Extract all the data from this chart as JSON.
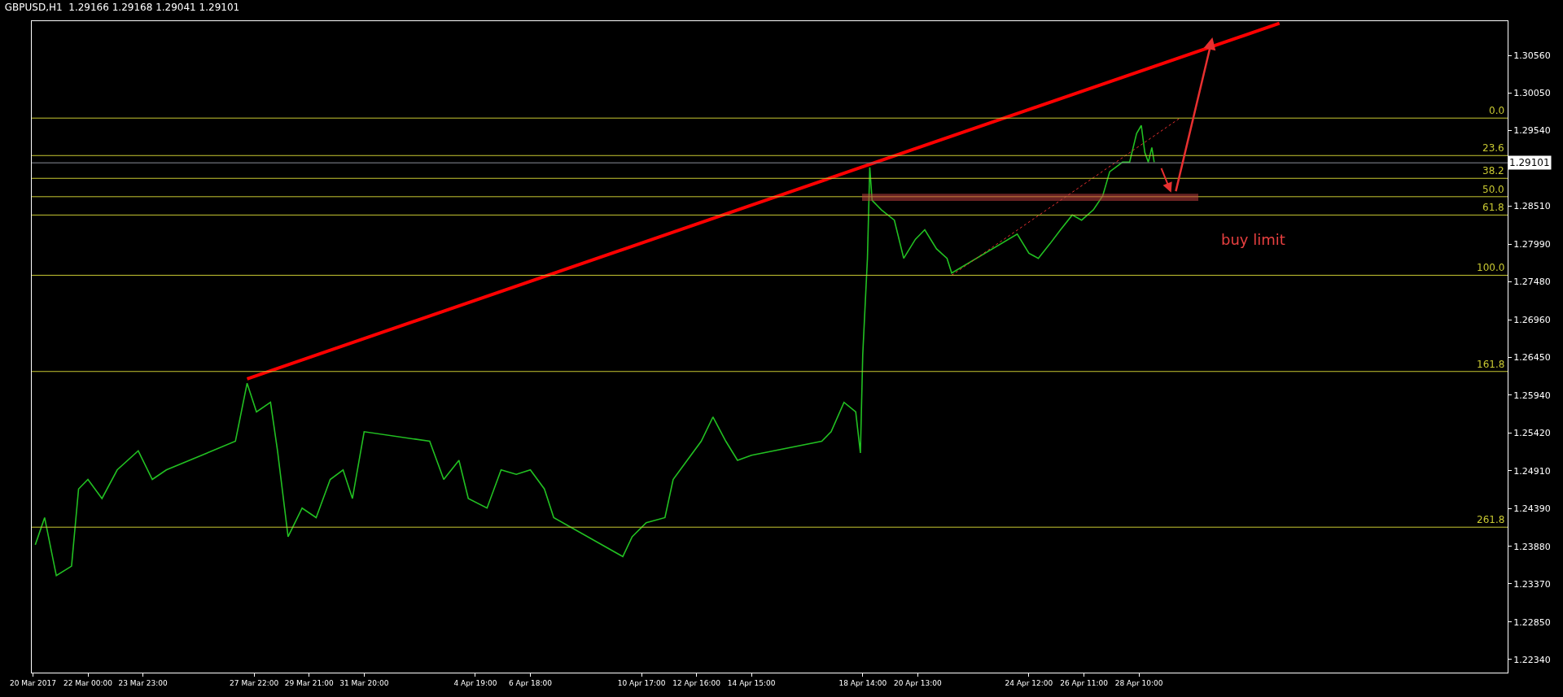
{
  "chart_data": {
    "type": "line",
    "title": "GBPUSD,H1  1.29166 1.29168 1.29041 1.29101",
    "x": [
      "2017-03-20T03:00",
      "2017-03-20T11:00",
      "2017-03-20T21:00",
      "2017-03-21T10:00",
      "2017-03-21T16:00",
      "2017-03-22T00:00",
      "2017-03-22T12:00",
      "2017-03-23T01:00",
      "2017-03-23T19:00",
      "2017-03-24T07:00",
      "2017-03-24T19:00",
      "2017-03-27T06:00",
      "2017-03-27T16:00",
      "2017-03-28T00:00",
      "2017-03-28T12:00",
      "2017-03-28T18:00",
      "2017-03-29T03:00",
      "2017-03-29T15:00",
      "2017-03-30T03:00",
      "2017-03-30T15:00",
      "2017-03-31T02:00",
      "2017-03-31T10:00",
      "2017-03-31T20:00",
      "2017-04-03T04:00",
      "2017-04-03T16:00",
      "2017-04-04T05:00",
      "2017-04-04T13:00",
      "2017-04-05T05:00",
      "2017-04-05T17:00",
      "2017-04-06T06:00",
      "2017-04-06T18:00",
      "2017-04-07T06:00",
      "2017-04-07T14:00",
      "2017-04-10T01:00",
      "2017-04-10T09:00",
      "2017-04-10T21:00",
      "2017-04-11T13:00",
      "2017-04-11T20:00",
      "2017-04-12T08:00",
      "2017-04-12T20:00",
      "2017-04-13T06:00",
      "2017-04-13T17:00",
      "2017-04-14T03:00",
      "2017-04-14T15:00",
      "2017-04-17T03:00",
      "2017-04-17T11:00",
      "2017-04-17T22:00",
      "2017-04-18T08:00",
      "2017-04-18T12:00",
      "2017-04-18T14:00",
      "2017-04-18T18:00",
      "2017-04-18T20:00",
      "2017-04-18T22:00",
      "2017-04-19T06:00",
      "2017-04-19T17:00",
      "2017-04-20T01:00",
      "2017-04-20T11:00",
      "2017-04-20T19:00",
      "2017-04-21T05:00",
      "2017-04-21T14:00",
      "2017-04-21T18:00",
      "2017-04-24T02:00",
      "2017-04-24T12:00",
      "2017-04-24T20:00",
      "2017-04-25T06:00",
      "2017-04-25T15:00",
      "2017-04-26T01:00",
      "2017-04-26T09:00",
      "2017-04-26T19:00",
      "2017-04-27T03:00",
      "2017-04-27T09:00",
      "2017-04-27T20:00",
      "2017-04-28T02:00",
      "2017-04-28T08:00",
      "2017-04-28T12:00",
      "2017-04-28T15:00",
      "2017-04-28T18:00",
      "2017-04-28T21:00",
      "2017-04-28T23:00"
    ],
    "series": [
      {
        "color": "#22c022",
        "values": [
          1.239,
          1.2427,
          1.2348,
          1.2361,
          1.2466,
          1.2479,
          1.2453,
          1.2492,
          1.2518,
          1.2479,
          1.2492,
          1.2531,
          1.261,
          1.2571,
          1.2584,
          1.2518,
          1.2401,
          1.244,
          1.2427,
          1.2479,
          1.2492,
          1.2453,
          1.2544,
          1.2531,
          1.2479,
          1.2505,
          1.2453,
          1.244,
          1.2492,
          1.2486,
          1.2492,
          1.2466,
          1.2427,
          1.2374,
          1.2401,
          1.242,
          1.2427,
          1.2479,
          1.2505,
          1.2531,
          1.2564,
          1.2531,
          1.2505,
          1.2512,
          1.2531,
          1.2544,
          1.2584,
          1.2571,
          1.2515,
          1.2649,
          1.278,
          1.2904,
          1.2859,
          1.2846,
          1.2832,
          1.278,
          1.2806,
          1.2819,
          1.2793,
          1.278,
          1.276,
          1.2813,
          1.2787,
          1.278,
          1.28,
          1.2819,
          1.2839,
          1.2832,
          1.2846,
          1.2865,
          1.2898,
          1.2911,
          1.2911,
          1.295,
          1.2961,
          1.2924,
          1.2911,
          1.2931,
          1.2911
        ]
      },
      {
        "type": "line",
        "color": "#ff0000",
        "x": [
          "2017-03-27T16:00",
          "2017-05-03T10:00"
        ],
        "values": [
          1.2616,
          1.31
        ]
      },
      {
        "type": "line",
        "color": "#e83030",
        "line_style": "dotted",
        "x": [
          "2017-04-21T18:00",
          "2017-04-29T21:00"
        ],
        "values": [
          1.2757,
          1.2971
        ]
      }
    ],
    "xlim": [
      "2017-03-20T00:00",
      "2017-05-11T13:00"
    ],
    "xticks": [
      {
        "value": "2017-03-20T01:00",
        "label": "20 Mar 2017"
      },
      {
        "value": "2017-03-22T00:00",
        "label": "22 Mar 00:00"
      },
      {
        "value": "2017-03-23T23:00",
        "label": "23 Mar 23:00"
      },
      {
        "value": "2017-03-27T22:00",
        "label": "27 Mar 22:00"
      },
      {
        "value": "2017-03-29T21:00",
        "label": "29 Mar 21:00"
      },
      {
        "value": "2017-03-31T20:00",
        "label": "31 Mar 20:00"
      },
      {
        "value": "2017-04-04T19:00",
        "label": "4 Apr 19:00"
      },
      {
        "value": "2017-04-06T18:00",
        "label": "6 Apr 18:00"
      },
      {
        "value": "2017-04-10T17:00",
        "label": "10 Apr 17:00"
      },
      {
        "value": "2017-04-12T16:00",
        "label": "12 Apr 16:00"
      },
      {
        "value": "2017-04-14T15:00",
        "label": "14 Apr 15:00"
      },
      {
        "value": "2017-04-18T14:00",
        "label": "18 Apr 14:00"
      },
      {
        "value": "2017-04-20T13:00",
        "label": "20 Apr 13:00"
      },
      {
        "value": "2017-04-24T12:00",
        "label": "24 Apr 12:00"
      },
      {
        "value": "2017-04-26T11:00",
        "label": "26 Apr 11:00"
      },
      {
        "value": "2017-04-28T10:00",
        "label": "28 Apr 10:00"
      }
    ],
    "ylim": [
      1.2216,
      1.3103
    ],
    "yticks": [
      {
        "value": 1.3056,
        "label": "1.30560"
      },
      {
        "value": 1.3005,
        "label": "1.30050"
      },
      {
        "value": 1.2954,
        "label": "1.29540"
      },
      {
        "value": 1.2851,
        "label": "1.28510"
      },
      {
        "value": 1.2799,
        "label": "1.27990"
      },
      {
        "value": 1.2748,
        "label": "1.27480"
      },
      {
        "value": 1.2696,
        "label": "1.26960"
      },
      {
        "value": 1.2645,
        "label": "1.26450"
      },
      {
        "value": 1.2594,
        "label": "1.25940"
      },
      {
        "value": 1.2542,
        "label": "1.25420"
      },
      {
        "value": 1.2491,
        "label": "1.24910"
      },
      {
        "value": 1.2439,
        "label": "1.24390"
      },
      {
        "value": 1.2388,
        "label": "1.23880"
      },
      {
        "value": 1.2337,
        "label": "1.23370"
      },
      {
        "value": 1.2285,
        "label": "1.22850"
      },
      {
        "value": 1.2234,
        "label": "1.22340"
      }
    ],
    "ref_lines": [
      {
        "axis": "y",
        "value": 1.2971,
        "color": "#c8c832"
      },
      {
        "axis": "y",
        "value": 1.292,
        "color": "#c8c832"
      },
      {
        "axis": "y",
        "value": 1.2889,
        "color": "#c8c832"
      },
      {
        "axis": "y",
        "value": 1.2864,
        "color": "#c8c832"
      },
      {
        "axis": "y",
        "value": 1.2839,
        "color": "#c8c832"
      },
      {
        "axis": "y",
        "value": 1.2757,
        "color": "#c8c832"
      },
      {
        "axis": "y",
        "value": 1.2626,
        "color": "#c8c832"
      },
      {
        "axis": "y",
        "value": 1.2414,
        "color": "#c8c832"
      },
      {
        "axis": "y",
        "value": 1.29101,
        "label": "1.29101",
        "color": "#8a8f99"
      }
    ],
    "bands": [
      {
        "axis": "y",
        "from": 1.2859,
        "to": 1.2867,
        "color": "#c04040"
      }
    ],
    "annotations": [
      {
        "text": "0.0",
        "y": 1.2971
      },
      {
        "text": "23.6",
        "y": 1.292
      },
      {
        "text": "38.2",
        "y": 1.2889
      },
      {
        "text": "50.0",
        "y": 1.2864
      },
      {
        "text": "61.8",
        "y": 1.2839
      },
      {
        "text": "100.0",
        "y": 1.2757
      },
      {
        "text": "161.8",
        "y": 1.2626
      },
      {
        "text": "261.8",
        "y": 1.2414
      },
      "buy limit"
    ],
    "grid": false
  }
}
